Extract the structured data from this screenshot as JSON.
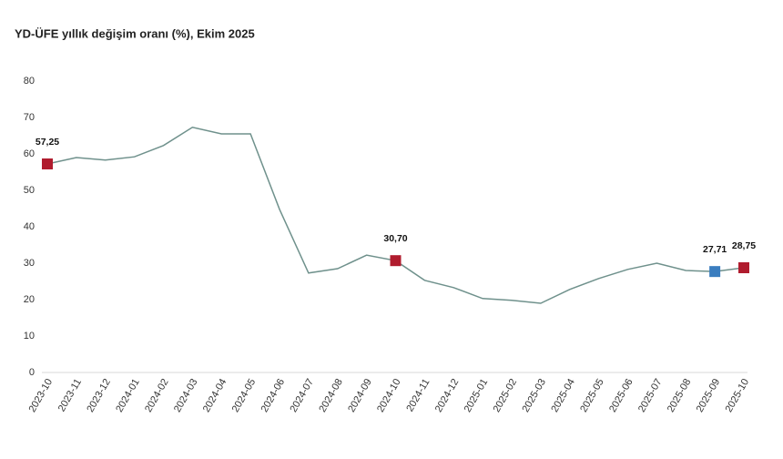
{
  "chart_data": {
    "type": "line",
    "title": "YD-ÜFE yıllık değişim oranı (%), Ekim 2025",
    "categories": [
      "2023-10",
      "2023-11",
      "2023-12",
      "2024-01",
      "2024-02",
      "2024-03",
      "2024-04",
      "2024-05",
      "2024-06",
      "2024-07",
      "2024-08",
      "2024-09",
      "2024-10",
      "2024-11",
      "2024-12",
      "2025-01",
      "2025-02",
      "2025-03",
      "2025-04",
      "2025-05",
      "2025-06",
      "2025-07",
      "2025-08",
      "2025-09",
      "2025-10"
    ],
    "values": [
      57.25,
      59.0,
      58.3,
      59.2,
      62.3,
      67.3,
      65.5,
      65.5,
      44.8,
      27.3,
      28.5,
      32.2,
      30.7,
      25.3,
      23.3,
      20.3,
      19.8,
      19.0,
      22.8,
      25.8,
      28.3,
      30.0,
      28.0,
      27.71,
      28.75
    ],
    "value_labels": [
      "57,25",
      null,
      null,
      null,
      null,
      null,
      null,
      null,
      null,
      null,
      null,
      null,
      "30,70",
      null,
      null,
      null,
      null,
      null,
      null,
      null,
      null,
      null,
      null,
      "27,71",
      "28,75"
    ],
    "marker_colors": [
      "#b01c2e",
      null,
      null,
      null,
      null,
      null,
      null,
      null,
      null,
      null,
      null,
      null,
      "#b01c2e",
      null,
      null,
      null,
      null,
      null,
      null,
      null,
      null,
      null,
      null,
      "#3a7dbf",
      "#b01c2e"
    ],
    "color": "#6f918c",
    "ylim": [
      0,
      80
    ],
    "yticks": [
      0,
      10,
      20,
      30,
      40,
      50,
      60,
      70,
      80
    ],
    "grid": false
  }
}
